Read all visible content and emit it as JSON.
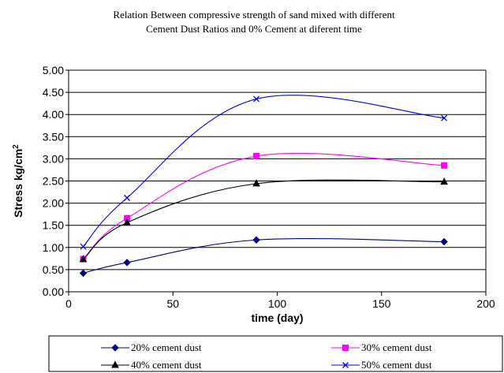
{
  "chart_data": {
    "type": "line",
    "title_lines": [
      "Relation Between compressive strength of sand mixed with different",
      "Cement Dust Ratios and 0% Cement at diferent time"
    ],
    "xlabel": "time (day)",
    "ylabel": "Stress kg/cm",
    "ylabel_superscript": "2",
    "xlim": [
      0,
      200
    ],
    "ylim": [
      0,
      5
    ],
    "x_ticks": [
      "0",
      "50",
      "100",
      "150",
      "200"
    ],
    "y_ticks": [
      "0.00",
      "0.50",
      "1.00",
      "1.50",
      "2.00",
      "2.50",
      "3.00",
      "3.50",
      "4.00",
      "4.50",
      "5.00"
    ],
    "grid": {
      "horizontal": true,
      "vertical": false
    },
    "legend_position": "bottom",
    "x": [
      7,
      28,
      90,
      180
    ],
    "series": [
      {
        "name": "20% cement dust",
        "values": [
          0.42,
          0.66,
          1.17,
          1.13
        ],
        "color": "#000080",
        "marker": "diamond"
      },
      {
        "name": "30% cement dust",
        "values": [
          0.74,
          1.66,
          3.06,
          2.85
        ],
        "color": "#ff00ff",
        "marker": "square"
      },
      {
        "name": "40% cement dust",
        "values": [
          0.73,
          1.56,
          2.44,
          2.48
        ],
        "color": "#000000",
        "marker": "triangle"
      },
      {
        "name": "50% cement dust",
        "values": [
          1.02,
          2.12,
          4.35,
          3.92
        ],
        "color": "#0000ff",
        "marker": "x"
      }
    ]
  }
}
